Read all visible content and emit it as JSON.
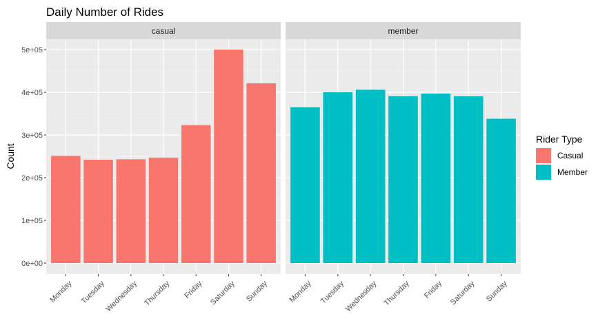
{
  "chart_data": {
    "type": "bar",
    "title": "Daily Number of Rides",
    "xlabel": "",
    "ylabel": "Count",
    "ylim": [
      0,
      550000
    ],
    "y_ticks": [
      0,
      100000,
      200000,
      300000,
      400000,
      500000
    ],
    "y_tick_labels": [
      "0e+00",
      "1e+05",
      "2e+05",
      "3e+05",
      "4e+05",
      "5e+05"
    ],
    "categories": [
      "Monday",
      "Tuesday",
      "Wednesday",
      "Thursday",
      "Friday",
      "Saturday",
      "Sunday"
    ],
    "grid": true,
    "legend": {
      "title": "Rider Type",
      "placement": "right",
      "entries": [
        {
          "label": "Casual",
          "color": "#F8766D"
        },
        {
          "label": "Member",
          "color": "#00BFC4"
        }
      ]
    },
    "panels": [
      {
        "strip": "casual",
        "color": "#F8766D",
        "values": [
          251000,
          242000,
          243000,
          247000,
          323000,
          500000,
          421000
        ]
      },
      {
        "strip": "member",
        "color": "#00BFC4",
        "values": [
          365000,
          400000,
          406000,
          391000,
          397000,
          391000,
          338000
        ]
      }
    ]
  }
}
